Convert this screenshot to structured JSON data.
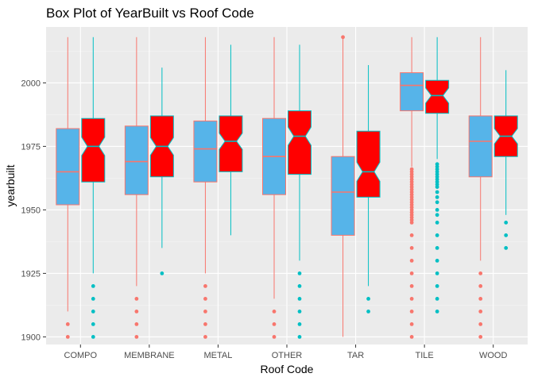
{
  "chart_data": {
    "type": "boxplot",
    "title": "Box Plot of YearBuilt vs Roof Code",
    "xlabel": "Roof Code",
    "ylabel": "yearbuilt",
    "ylim": [
      1897,
      2022
    ],
    "yticks": [
      1900,
      1925,
      1950,
      1975,
      2000
    ],
    "categories": [
      "COMPO",
      "MEMBRANE",
      "METAL",
      "OTHER",
      "TAR",
      "TILE",
      "WOOD"
    ],
    "grid": true,
    "legend": "none",
    "series": [
      {
        "fill": "#56B4E9",
        "line_color": "#F8766D",
        "notched": false,
        "boxes": [
          {
            "min": 1910,
            "q1": 1952,
            "median": 1965,
            "q3": 1982,
            "max": 2018,
            "outliers": [
              1900,
              1905
            ]
          },
          {
            "min": 1920,
            "q1": 1956,
            "median": 1969,
            "q3": 1983,
            "max": 2018,
            "outliers": [
              1900,
              1905,
              1910,
              1915
            ]
          },
          {
            "min": 1925,
            "q1": 1961,
            "median": 1974,
            "q3": 1985,
            "max": 2018,
            "outliers": [
              1900,
              1905,
              1910,
              1915,
              1920
            ]
          },
          {
            "min": 1915,
            "q1": 1956,
            "median": 1971,
            "q3": 1986,
            "max": 2018,
            "outliers": [
              1900,
              1905,
              1910
            ]
          },
          {
            "min": 1900,
            "q1": 1940,
            "median": 1957,
            "q3": 1971,
            "max": 2018,
            "outliers": [
              2018
            ]
          },
          {
            "min": 1967,
            "q1": 1989,
            "median": 1999,
            "q3": 2004,
            "max": 2018,
            "outliers": [
              1900,
              1905,
              1910,
              1915,
              1920,
              1925,
              1930,
              1935,
              1940,
              1945,
              1946,
              1947,
              1948,
              1949,
              1950,
              1951,
              1952,
              1953,
              1954,
              1955,
              1956,
              1957,
              1958,
              1959,
              1960,
              1961,
              1962,
              1963,
              1964,
              1965,
              1966
            ]
          },
          {
            "min": 1930,
            "q1": 1963,
            "median": 1977,
            "q3": 1987,
            "max": 2018,
            "outliers": [
              1900,
              1905,
              1910,
              1915,
              1920,
              1925
            ]
          }
        ]
      },
      {
        "fill": "#FF0000",
        "line_color": "#00BFC4",
        "notched": true,
        "boxes": [
          {
            "min": 1925,
            "q1": 1961,
            "median": 1975,
            "q3": 1986,
            "max": 2018,
            "outliers": [
              1900,
              1905,
              1910,
              1915,
              1920
            ]
          },
          {
            "min": 1935,
            "q1": 1963,
            "median": 1975,
            "q3": 1987,
            "max": 2006,
            "outliers": [
              1925
            ]
          },
          {
            "min": 1940,
            "q1": 1965,
            "median": 1977,
            "q3": 1987,
            "max": 2015,
            "outliers": []
          },
          {
            "min": 1930,
            "q1": 1964,
            "median": 1979,
            "q3": 1989,
            "max": 2015,
            "outliers": [
              1900,
              1905,
              1910,
              1915,
              1920,
              1925
            ]
          },
          {
            "min": 1920,
            "q1": 1955,
            "median": 1965,
            "q3": 1981,
            "max": 2007,
            "outliers": [
              1910,
              1915
            ]
          },
          {
            "min": 1970,
            "q1": 1988,
            "median": 1995,
            "q3": 2001,
            "max": 2018,
            "outliers": [
              1910,
              1915,
              1920,
              1925,
              1930,
              1935,
              1940,
              1945,
              1948,
              1950,
              1953,
              1955,
              1957,
              1959,
              1960,
              1961,
              1962,
              1963,
              1964,
              1965,
              1966,
              1967,
              1968
            ]
          },
          {
            "min": 1948,
            "q1": 1971,
            "median": 1979,
            "q3": 1987,
            "max": 2005,
            "outliers": [
              1935,
              1940,
              1945
            ]
          }
        ]
      }
    ]
  }
}
